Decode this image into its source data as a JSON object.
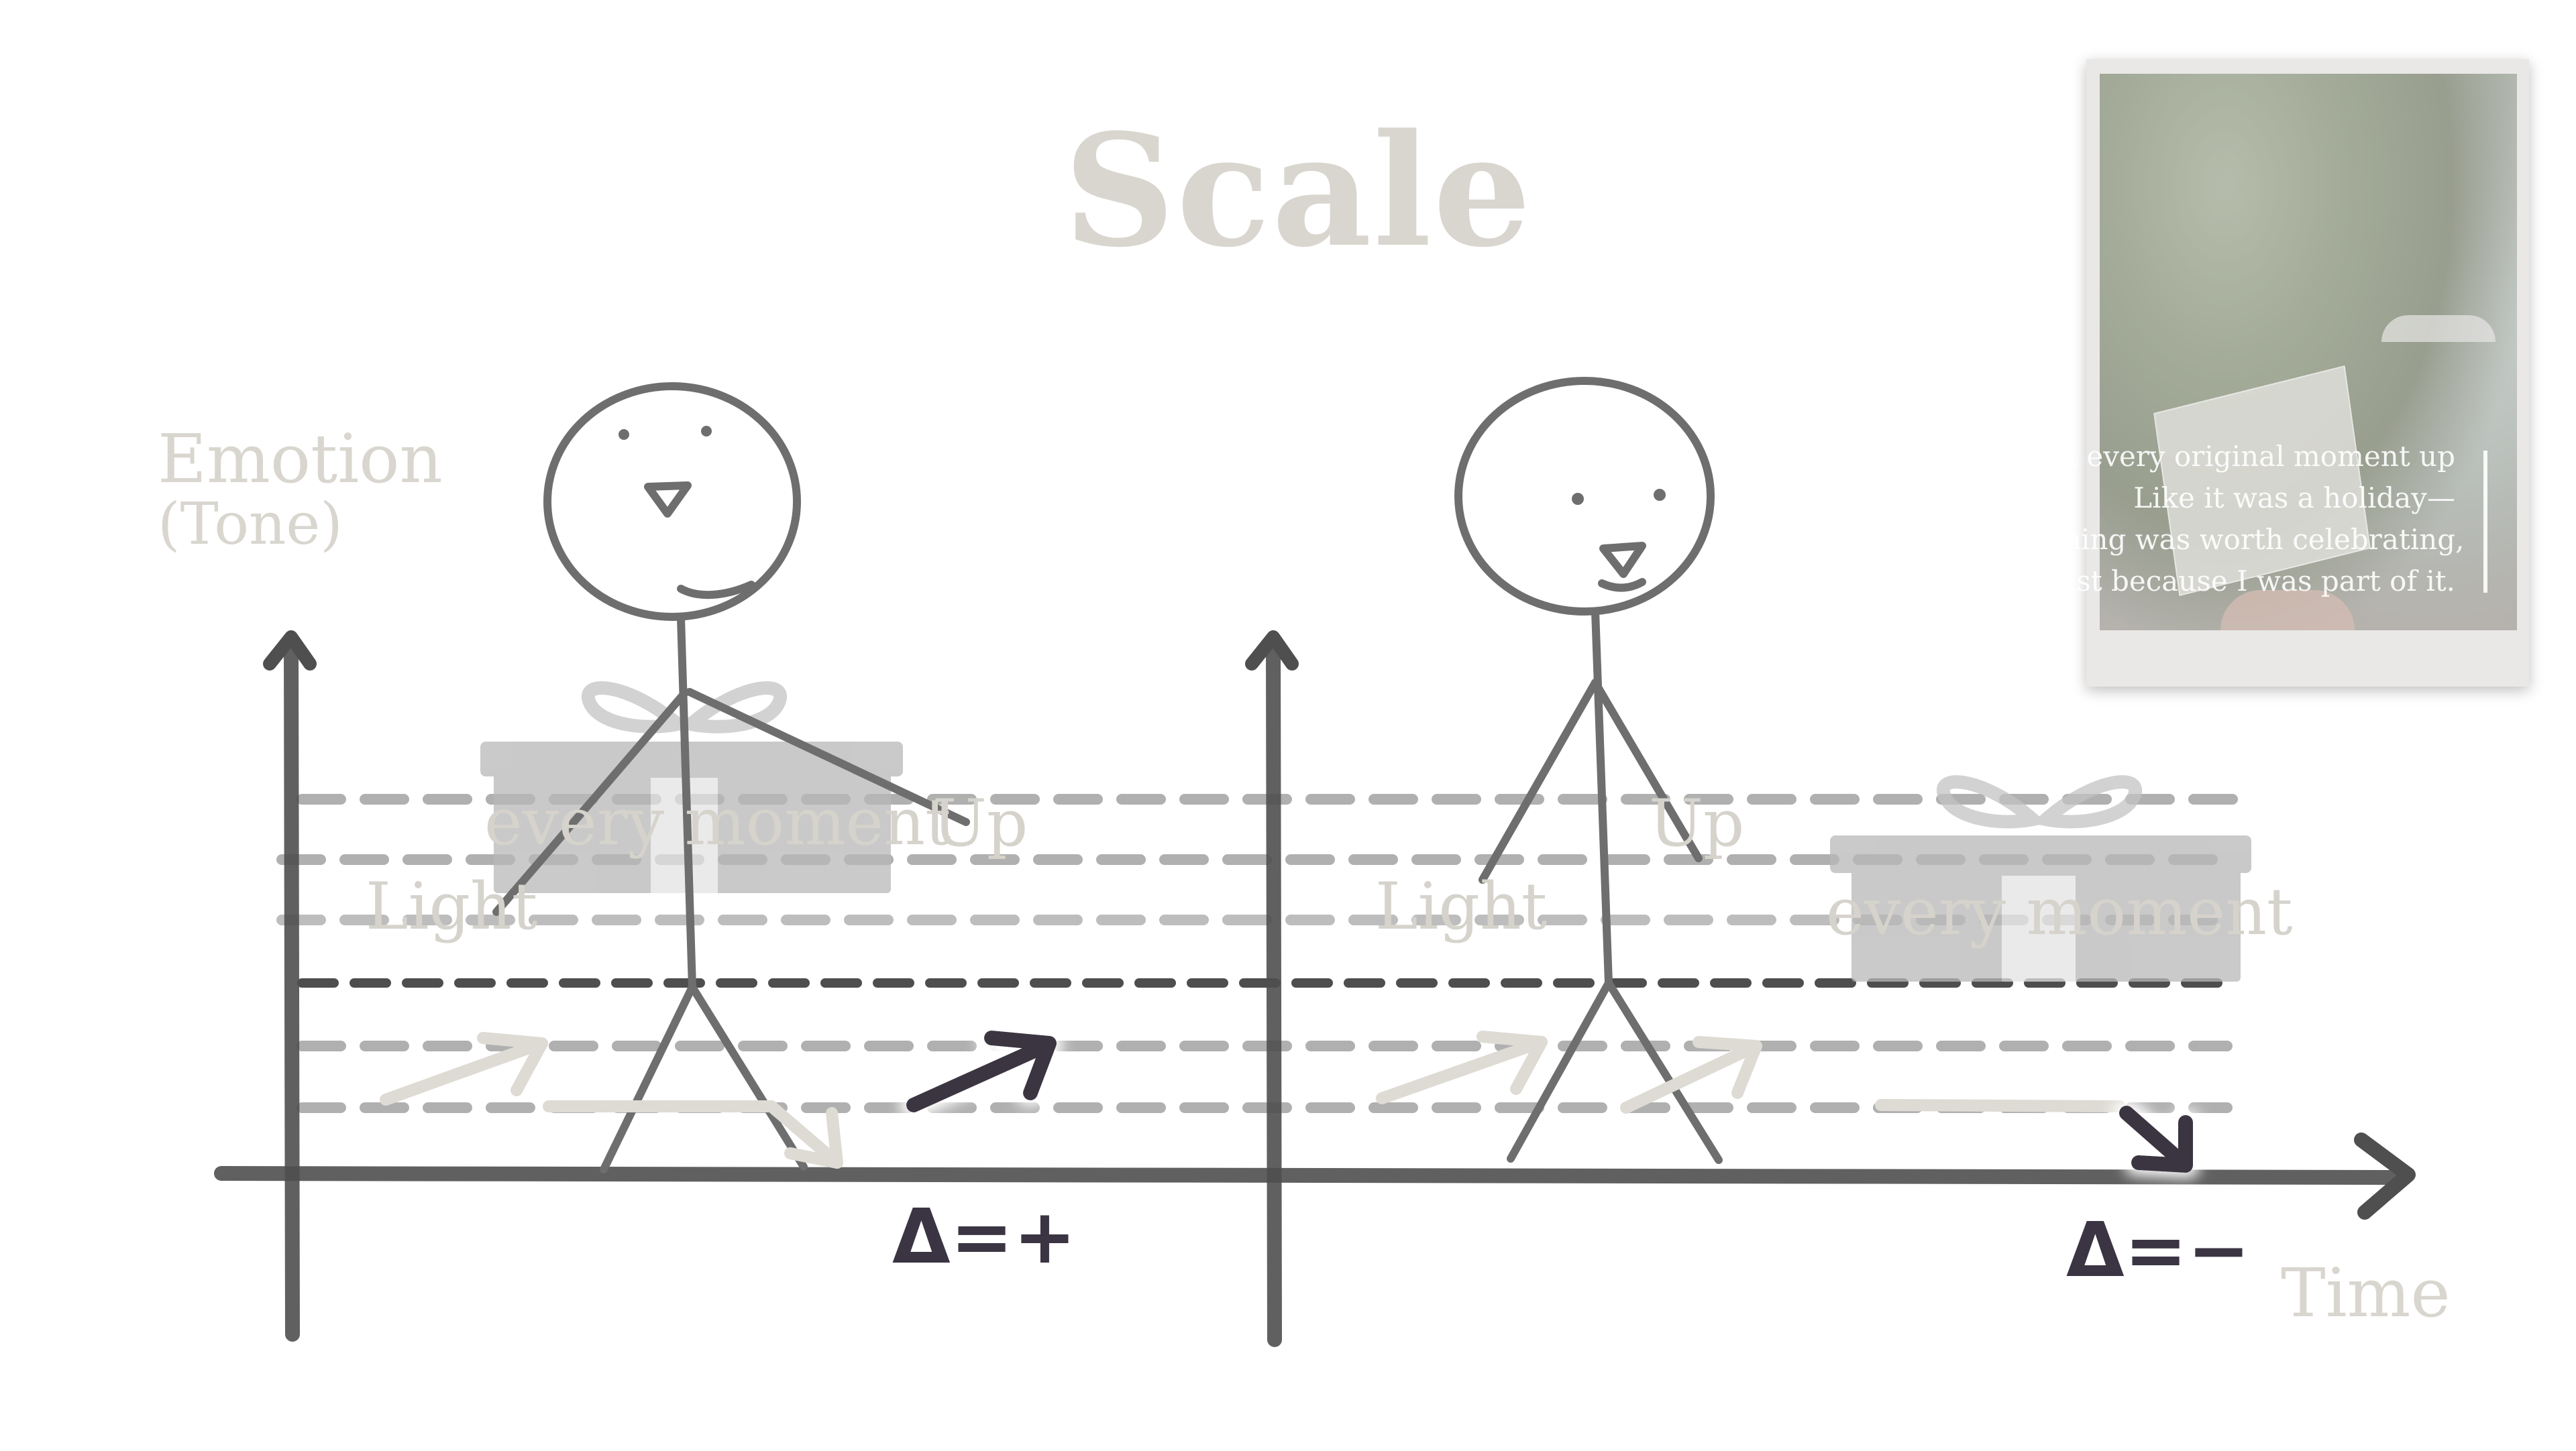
{
  "title": "Scale",
  "y_axis": {
    "line1": "Emotion",
    "line2": "(Tone)"
  },
  "x_axis": {
    "label": "Time"
  },
  "left_panel": {
    "gift_text": "every moment",
    "up_label": "Up",
    "light_label": "Light",
    "delta": "Δ=+"
  },
  "right_panel": {
    "gift_text": "every moment",
    "up_label": "Up",
    "light_label": "Light",
    "delta": "Δ=−"
  },
  "photo_caption": {
    "lines": [
      "You lit every original moment up",
      "Like it was a holiday—",
      "as if anything was worth celebrating,",
      "just because I was part of it."
    ]
  },
  "colors": {
    "axis": "#555555",
    "dash_light": "#b5b5b5",
    "dash_dark": "#555555",
    "figure": "#6e6e6e",
    "arrow_dark": "#3a3443",
    "arrow_faint": "#dcd9d2",
    "faint_text": "#d9d6cf"
  }
}
